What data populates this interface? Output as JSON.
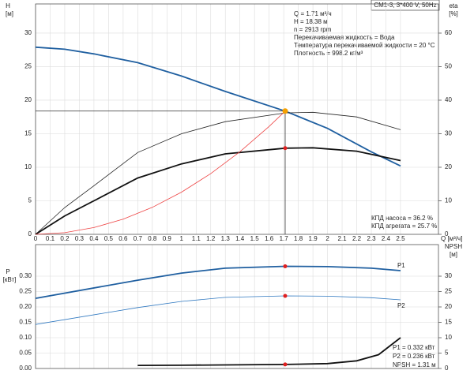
{
  "title": "CM1-3, 3*400 V, 50Hz",
  "chart_data": [
    {
      "type": "line",
      "x_label": "Q [м³/ч]",
      "y_label": "H",
      "y_unit": "[м]",
      "y2_label": "eta",
      "y2_unit": "[%]",
      "xlim": [
        0,
        2.76
      ],
      "xticks": [
        0,
        0.1,
        0.2,
        0.3,
        0.4,
        0.5,
        0.6,
        0.7,
        0.8,
        0.9,
        1,
        1.1,
        1.2,
        1.3,
        1.4,
        1.5,
        1.6,
        1.7,
        1.8,
        1.9,
        2,
        2.1,
        2.2,
        2.3,
        2.4,
        2.5
      ],
      "ylim": [
        0,
        34.35
      ],
      "yticks": [
        0,
        5,
        10,
        15,
        20,
        25,
        30
      ],
      "y2lim": [
        0,
        68.7
      ],
      "y2ticks": [
        0,
        10,
        20,
        30,
        40,
        50,
        60
      ],
      "grid": true,
      "series": [
        {
          "color": "#1f5fa0",
          "style": "bold",
          "x": [
            0,
            0.2,
            0.4,
            0.7,
            1.0,
            1.3,
            1.71,
            2.0,
            2.3,
            2.5
          ],
          "values": [
            27.9,
            27.6,
            26.9,
            25.6,
            23.6,
            21.3,
            18.38,
            15.8,
            12.3,
            10.2
          ]
        },
        {
          "color": "#222222",
          "style": "thin",
          "axis": "y2",
          "x": [
            0,
            0.2,
            0.4,
            0.7,
            1.0,
            1.3,
            1.71,
            1.9,
            2.2,
            2.5
          ],
          "values": [
            0,
            8,
            14.5,
            24.4,
            30,
            33.6,
            36.2,
            36.4,
            35,
            31.2
          ]
        },
        {
          "color": "#111111",
          "style": "bold",
          "axis": "y2",
          "x": [
            0,
            0.2,
            0.4,
            0.7,
            1.0,
            1.3,
            1.71,
            1.9,
            2.2,
            2.5
          ],
          "values": [
            0,
            5.5,
            10,
            16.8,
            21,
            24,
            25.7,
            25.8,
            24.8,
            22
          ]
        },
        {
          "color": "#ee4444",
          "style": "thin",
          "x": [
            0,
            0.2,
            0.4,
            0.6,
            0.8,
            1.0,
            1.2,
            1.4,
            1.6,
            1.71
          ],
          "values": [
            0,
            0.25,
            1.01,
            2.26,
            4.02,
            6.29,
            9.05,
            12.32,
            16.09,
            18.38
          ]
        }
      ],
      "points": [
        {
          "x": 1.71,
          "y": 18.38,
          "color": "#f5a000",
          "crosshair": true
        },
        {
          "x": 1.71,
          "y": 25.7,
          "axis": "y2",
          "color": "#e02020"
        }
      ]
    },
    {
      "type": "line",
      "y_label": "P",
      "y_unit": "[кВт]",
      "y2_label": "NPSH",
      "y2_unit": "[м]",
      "xlim": [
        0,
        2.76
      ],
      "xticks": [
        0,
        0.1,
        0.2,
        0.3,
        0.4,
        0.5,
        0.6,
        0.7,
        0.8,
        0.9,
        1,
        1.1,
        1.2,
        1.3,
        1.4,
        1.5,
        1.6,
        1.7,
        1.8,
        1.9,
        2,
        2.1,
        2.2,
        2.3,
        2.4,
        2.5
      ],
      "xtick_labels": false,
      "ylim": [
        0,
        0.4026
      ],
      "yticks": [
        {
          "value": 0,
          "label": "0.00"
        },
        {
          "value": 0.05,
          "label": "0.05"
        },
        {
          "value": 0.1,
          "label": "0.10"
        },
        {
          "value": 0.15,
          "label": "0.15"
        },
        {
          "value": 0.2,
          "label": "0.20"
        },
        {
          "value": 0.25,
          "label": "0.25"
        },
        {
          "value": 0.3,
          "label": "0.30"
        }
      ],
      "y2lim": [
        0,
        40.26
      ],
      "y2ticks": [
        0,
        5,
        10,
        15,
        20,
        25,
        30
      ],
      "grid": true,
      "series": [
        {
          "name": "P1",
          "color": "#1f5fa0",
          "style": "bold",
          "x": [
            0,
            0.7,
            1.0,
            1.3,
            1.71,
            2.0,
            2.3,
            2.5
          ],
          "values": [
            0.228,
            0.287,
            0.31,
            0.326,
            0.332,
            0.331,
            0.326,
            0.318
          ]
        },
        {
          "name": "P2",
          "color": "#2f78c0",
          "style": "thin",
          "x": [
            0,
            0.7,
            1.0,
            1.3,
            1.71,
            2.0,
            2.3,
            2.5
          ],
          "values": [
            0.143,
            0.198,
            0.218,
            0.231,
            0.236,
            0.235,
            0.23,
            0.223
          ]
        },
        {
          "color": "#111111",
          "style": "bold",
          "axis": "y2",
          "x": [
            0.7,
            1.0,
            1.71,
            2.0,
            2.2,
            2.35,
            2.5
          ],
          "values": [
            1.0,
            1.05,
            1.31,
            1.6,
            2.5,
            4.5,
            10
          ]
        }
      ],
      "points": [
        {
          "x": 1.71,
          "y": 0.332,
          "color": "#e02020"
        },
        {
          "x": 1.71,
          "y": 0.236,
          "color": "#e02020"
        },
        {
          "x": 1.71,
          "y": 1.31,
          "axis": "y2",
          "color": "#e02020"
        }
      ]
    }
  ],
  "info": [
    "Q = 1.71 м³/ч",
    "H = 18.38 м",
    "n = 2913 rpm",
    "Перекачиваемая жидкость = Вода",
    "Температура перекачиваемой жидкости = 20 °C",
    "Плотность = 998.2 кг/м³"
  ],
  "efficiency": [
    "КПД насоса = 36.2 %",
    "КПД агрегата = 25.7 %"
  ],
  "power": [
    "P1 = 0.332 кВт",
    "P2 = 0.236 кВт",
    "NPSH = 1.31 м"
  ]
}
